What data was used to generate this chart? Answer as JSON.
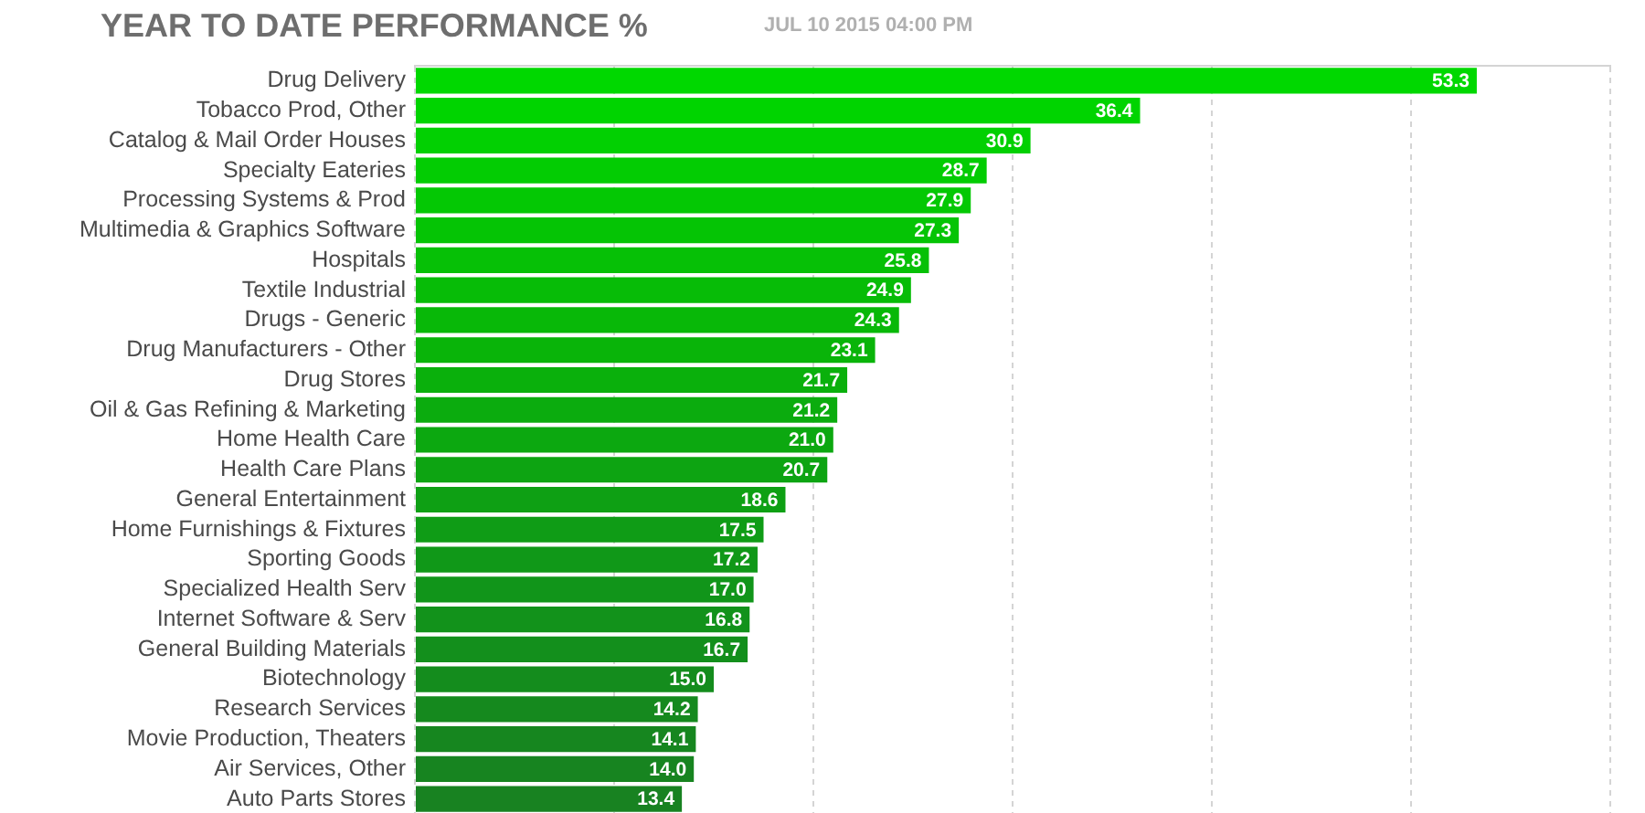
{
  "chart_data": {
    "type": "bar",
    "orientation": "horizontal",
    "title": "YEAR TO DATE PERFORMANCE %",
    "subtitle": "JUL 10 2015 04:00 PM",
    "categories": [
      "Drug Delivery",
      "Tobacco Prod, Other",
      "Catalog & Mail Order Houses",
      "Specialty Eateries",
      "Processing Systems & Prod",
      "Multimedia & Graphics Software",
      "Hospitals",
      "Textile Industrial",
      "Drugs - Generic",
      "Drug Manufacturers - Other",
      "Drug Stores",
      "Oil & Gas Refining & Marketing",
      "Home Health Care",
      "Health Care Plans",
      "General Entertainment",
      "Home Furnishings & Fixtures",
      "Sporting Goods",
      "Specialized Health Serv",
      "Internet Software & Serv",
      "General Building Materials",
      "Biotechnology",
      "Research Services",
      "Movie Production, Theaters",
      "Air Services, Other",
      "Auto Parts Stores"
    ],
    "values": [
      53.3,
      36.4,
      30.9,
      28.7,
      27.9,
      27.3,
      25.8,
      24.9,
      24.3,
      23.1,
      21.7,
      21.2,
      21.0,
      20.7,
      18.6,
      17.5,
      17.2,
      17.0,
      16.8,
      16.7,
      15.0,
      14.2,
      14.1,
      14.0,
      13.4
    ],
    "value_labels": [
      "53.3",
      "36.4",
      "30.9",
      "28.7",
      "27.9",
      "27.3",
      "25.8",
      "24.9",
      "24.3",
      "23.1",
      "21.7",
      "21.2",
      "21.0",
      "20.7",
      "18.6",
      "17.5",
      "17.2",
      "17.0",
      "16.8",
      "16.7",
      "15.0",
      "14.2",
      "14.1",
      "14.0",
      "13.4"
    ],
    "colors": [
      "#00d800",
      "#00d400",
      "#02d002",
      "#03cc03",
      "#04c804",
      "#05c405",
      "#06c006",
      "#07bc07",
      "#08b808",
      "#09b409",
      "#0ab00c",
      "#0bac0e",
      "#0ca810",
      "#0da412",
      "#0ea014",
      "#0f9c16",
      "#109818",
      "#11951a",
      "#12921b",
      "#138f1c",
      "#148c1d",
      "#15891e",
      "#16861f",
      "#178420",
      "#188221"
    ],
    "xlim": [
      0,
      60
    ],
    "xticks": [
      {
        "value": 0,
        "label": null
      },
      {
        "value": 10,
        "label": null
      },
      {
        "value": 20,
        "label": null
      },
      {
        "value": 30,
        "label": null
      },
      {
        "value": 40,
        "label": null
      },
      {
        "value": 50,
        "label": null
      },
      {
        "value": 60,
        "label": null
      }
    ],
    "tick_labels": "y",
    "grid": "x"
  }
}
